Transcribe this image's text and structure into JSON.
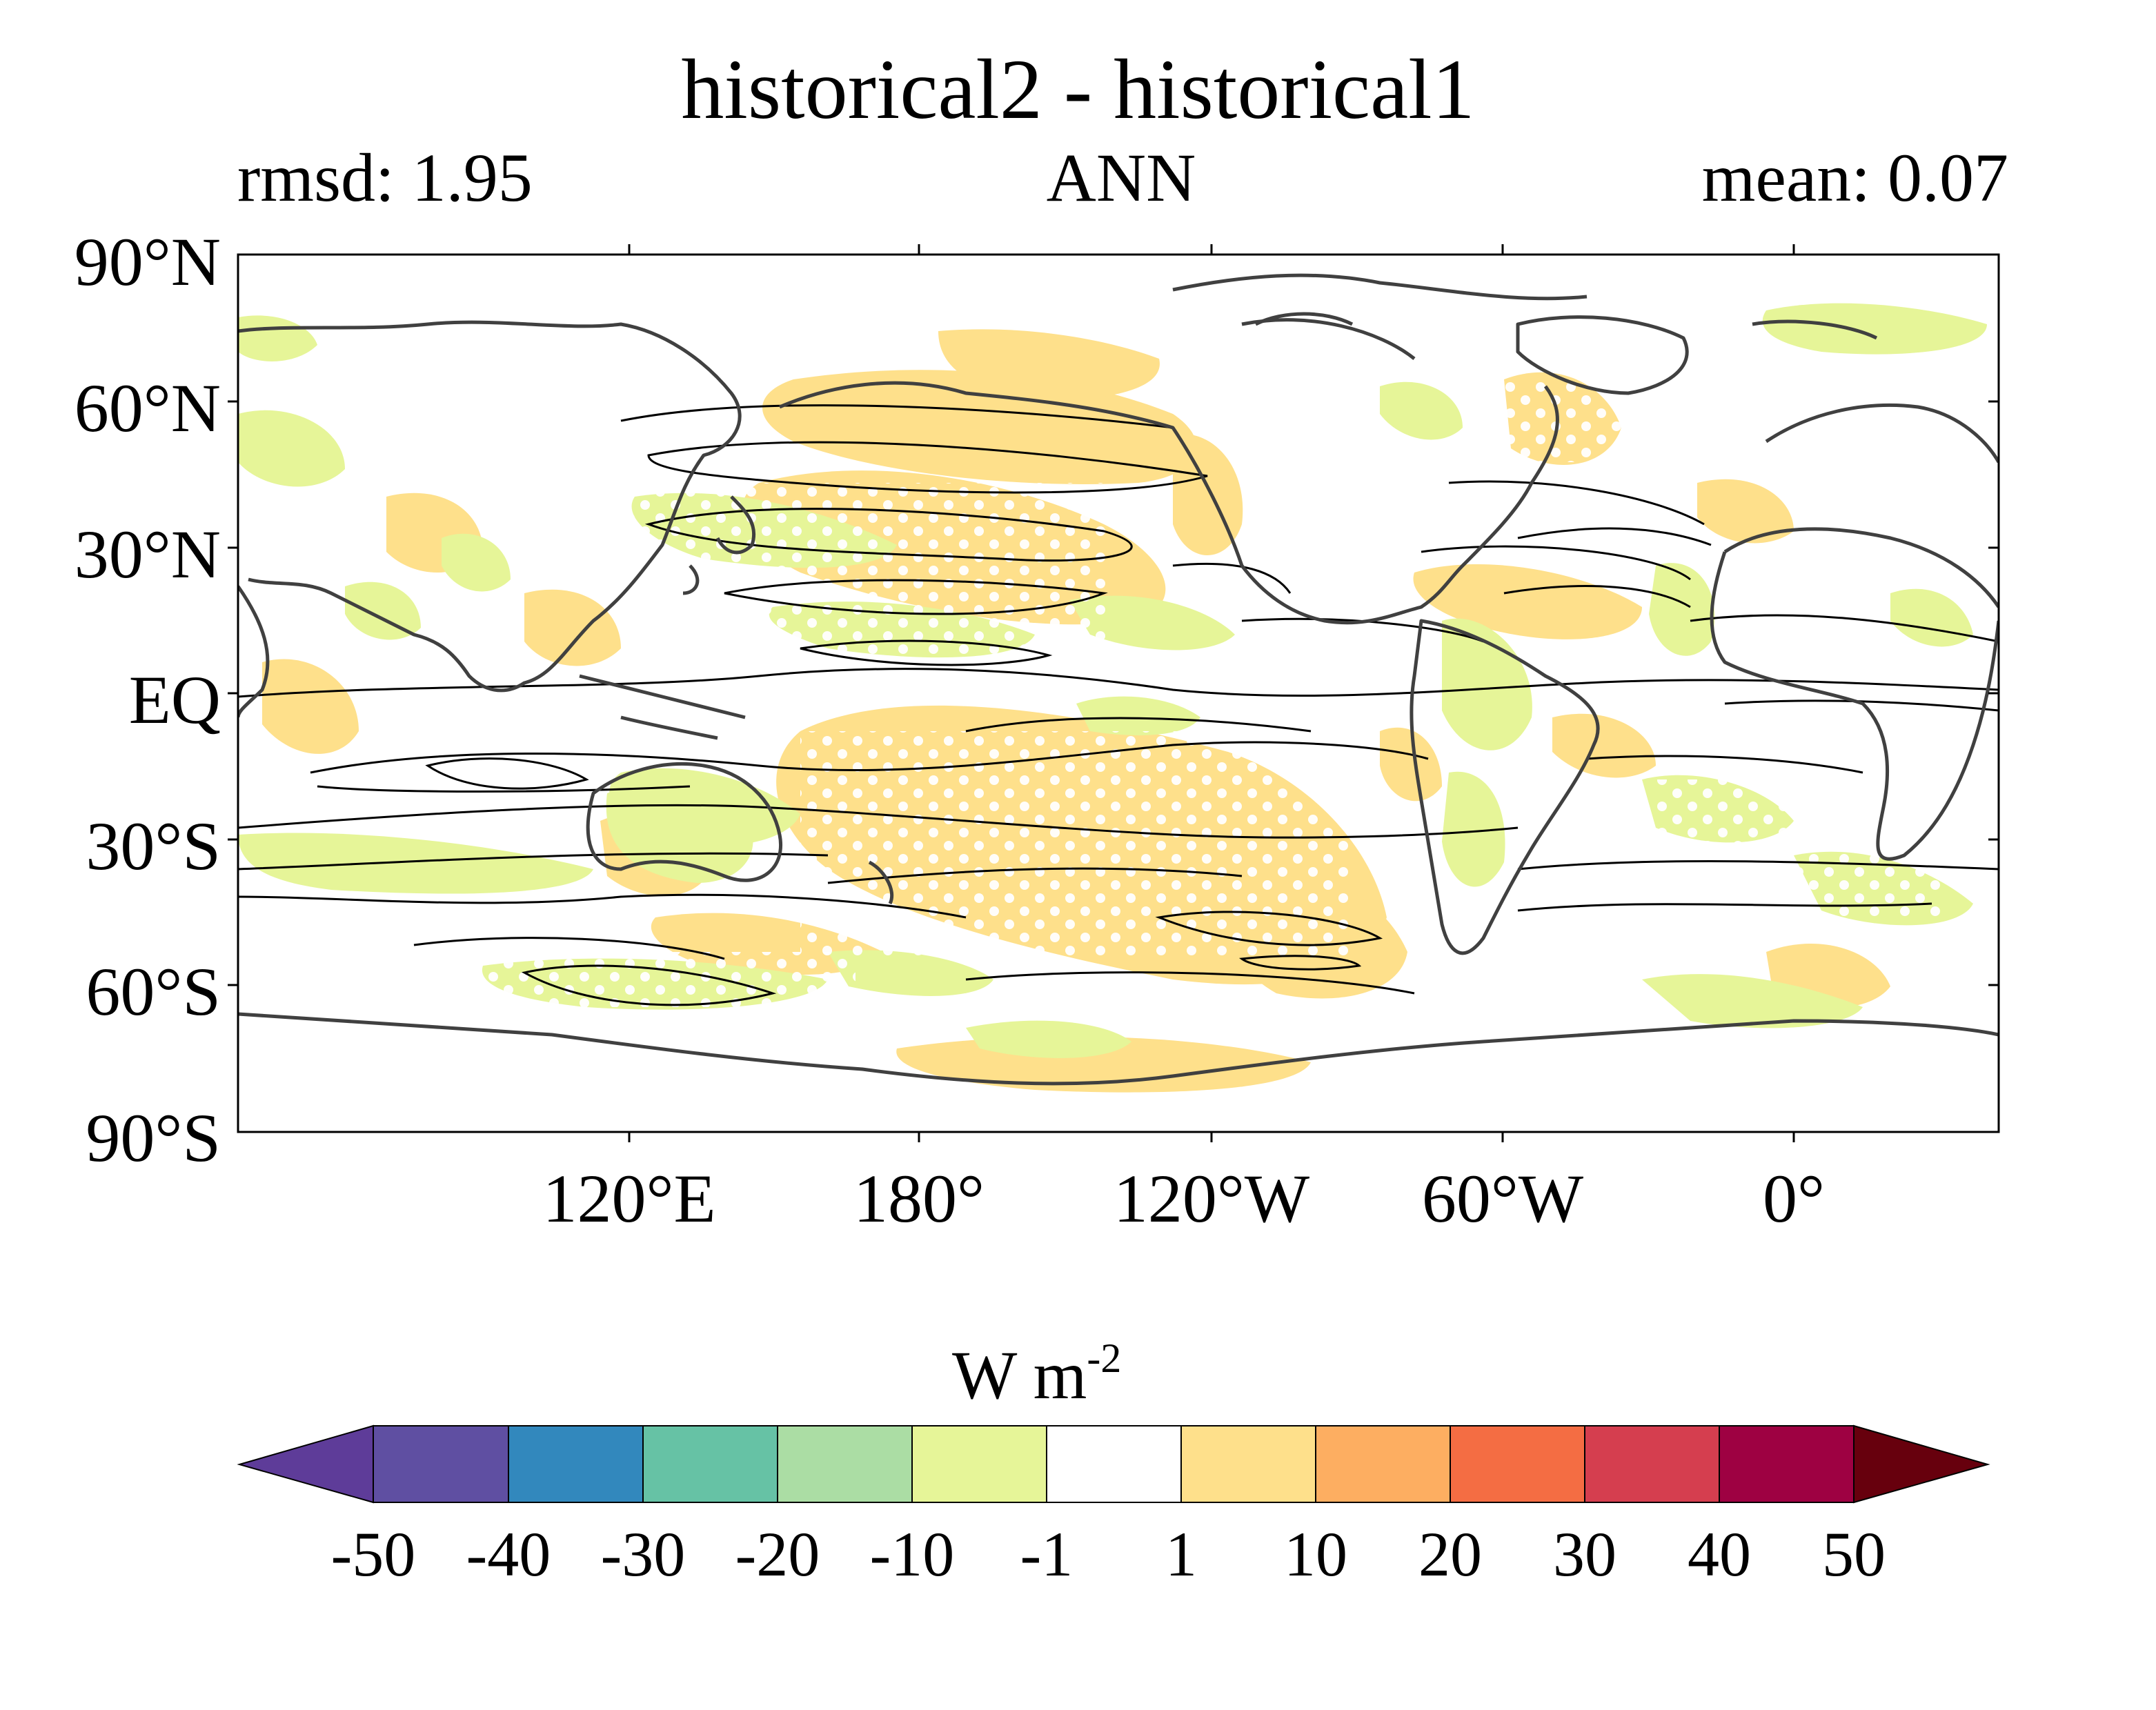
{
  "header": {
    "title": "historical2 - historical1",
    "left_label": "rmsd: 1.95",
    "center_label": "ANN",
    "right_label": "mean: 0.07"
  },
  "map": {
    "projection": "equirectangular, centered on 150°W",
    "lat_labels": [
      "90°N",
      "60°N",
      "30°N",
      "EQ",
      "30°S",
      "60°S",
      "90°S"
    ],
    "lon_labels": [
      "120°E",
      "180°",
      "120°W",
      "60°W",
      "0°"
    ],
    "stippling": "white dots mark significant regions",
    "contours": "black climatology contour lines; dark gray coastlines"
  },
  "colorbar": {
    "units_main": "W m",
    "units_exp": "-2",
    "tick_labels": [
      "-50",
      "-40",
      "-30",
      "-20",
      "-10",
      "-1",
      "1",
      "10",
      "20",
      "30",
      "40",
      "50"
    ],
    "colors": [
      "#5e3c99",
      "#5f4fa2",
      "#3288bd",
      "#66c2a5",
      "#abdda4",
      "#e6f598",
      "#ffffff",
      "#fee08b",
      "#fdae61",
      "#f46d43",
      "#d53e4f",
      "#9e0142",
      "#67000d"
    ]
  },
  "colors": {
    "positive_small": "#fee08b",
    "negative_small": "#e6f598",
    "contour": "#000000",
    "coastline": "#404040"
  }
}
